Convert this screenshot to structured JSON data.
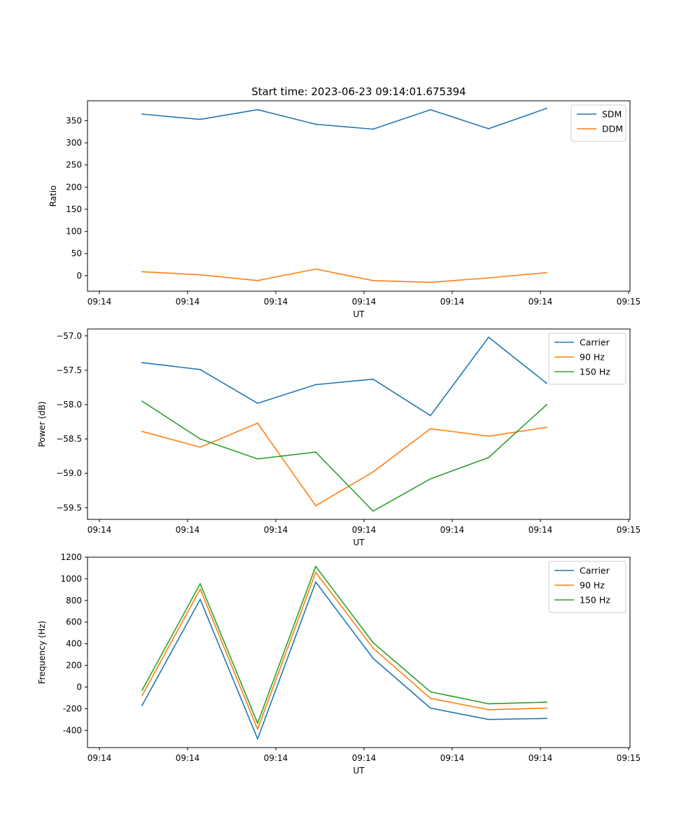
{
  "figure_title": "Start time: 2023-06-23 09:14:01.675394",
  "chart_data": [
    {
      "type": "line",
      "title": "Start time: 2023-06-23 09:14:01.675394",
      "xlabel": "UT",
      "ylabel": "Ratio",
      "xticks": [
        "09:14",
        "09:14",
        "09:14",
        "09:14",
        "09:14",
        "09:14",
        "09:15"
      ],
      "yticks": [
        350,
        300,
        250,
        200,
        150,
        100,
        50,
        0
      ],
      "ylim": [
        -35,
        395
      ],
      "legend_position": "top-right",
      "series": [
        {
          "name": "SDM",
          "color": "#1f77b4",
          "values": [
            365,
            353,
            375,
            342,
            331,
            375,
            332,
            378
          ]
        },
        {
          "name": "DDM",
          "color": "#ff7f0e",
          "values": [
            9,
            2,
            -11,
            15,
            -11,
            -15,
            -5,
            7
          ]
        }
      ]
    },
    {
      "type": "line",
      "title": "",
      "xlabel": "UT",
      "ylabel": "Power (dB)",
      "xticks": [
        "09:14",
        "09:14",
        "09:14",
        "09:14",
        "09:14",
        "09:14",
        "09:15"
      ],
      "yticks": [
        "−57.0",
        "−57.5",
        "−58.0",
        "−58.5",
        "−59.0",
        "−59.5"
      ],
      "ylim": [
        -59.67,
        -56.9
      ],
      "legend_position": "top-right",
      "series": [
        {
          "name": "Carrier",
          "color": "#1f77b4",
          "values": [
            -57.39,
            -57.49,
            -57.98,
            -57.71,
            -57.63,
            -58.16,
            -57.02,
            -57.69
          ]
        },
        {
          "name": "90 Hz",
          "color": "#ff7f0e",
          "values": [
            -58.39,
            -58.62,
            -58.27,
            -59.47,
            -58.98,
            -58.35,
            -58.46,
            -58.33
          ]
        },
        {
          "name": "150 Hz",
          "color": "#2ca02c",
          "values": [
            -57.95,
            -58.5,
            -58.79,
            -58.69,
            -59.55,
            -59.08,
            -58.77,
            -58.0
          ]
        }
      ]
    },
    {
      "type": "line",
      "title": "",
      "xlabel": "UT",
      "ylabel": "Frequency (Hz)",
      "xticks": [
        "09:14",
        "09:14",
        "09:14",
        "09:14",
        "09:14",
        "09:14",
        "09:15"
      ],
      "yticks": [
        1200,
        1000,
        800,
        600,
        400,
        200,
        0,
        -200,
        -400
      ],
      "ylim": [
        -560,
        1200
      ],
      "legend_position": "top-right",
      "series": [
        {
          "name": "Carrier",
          "color": "#1f77b4",
          "values": [
            -170,
            810,
            -480,
            970,
            265,
            -195,
            -300,
            -290
          ]
        },
        {
          "name": "90 Hz",
          "color": "#ff7f0e",
          "values": [
            -80,
            905,
            -390,
            1060,
            360,
            -105,
            -210,
            -195
          ]
        },
        {
          "name": "150 Hz",
          "color": "#2ca02c",
          "values": [
            -30,
            955,
            -335,
            1115,
            410,
            -45,
            -155,
            -140
          ]
        }
      ]
    }
  ]
}
